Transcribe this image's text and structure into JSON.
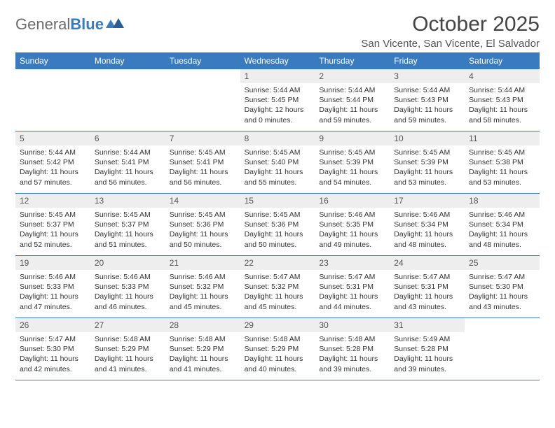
{
  "brand": {
    "first": "General",
    "second": "Blue"
  },
  "title": "October 2025",
  "location": "San Vicente, San Vicente, El Salvador",
  "colors": {
    "header_bg": "#3a7bbf",
    "header_fg": "#ffffff",
    "daynum_bg": "#eeeeee",
    "text": "#333333",
    "brand_gray": "#6b6b6b",
    "brand_blue": "#3a7bbf"
  },
  "dayNames": [
    "Sunday",
    "Monday",
    "Tuesday",
    "Wednesday",
    "Thursday",
    "Friday",
    "Saturday"
  ],
  "weeks": [
    [
      {
        "empty": true
      },
      {
        "empty": true
      },
      {
        "empty": true
      },
      {
        "day": "1",
        "sunrise": "Sunrise: 5:44 AM",
        "sunset": "Sunset: 5:45 PM",
        "daylight": "Daylight: 12 hours and 0 minutes."
      },
      {
        "day": "2",
        "sunrise": "Sunrise: 5:44 AM",
        "sunset": "Sunset: 5:44 PM",
        "daylight": "Daylight: 11 hours and 59 minutes."
      },
      {
        "day": "3",
        "sunrise": "Sunrise: 5:44 AM",
        "sunset": "Sunset: 5:43 PM",
        "daylight": "Daylight: 11 hours and 59 minutes."
      },
      {
        "day": "4",
        "sunrise": "Sunrise: 5:44 AM",
        "sunset": "Sunset: 5:43 PM",
        "daylight": "Daylight: 11 hours and 58 minutes."
      }
    ],
    [
      {
        "day": "5",
        "sunrise": "Sunrise: 5:44 AM",
        "sunset": "Sunset: 5:42 PM",
        "daylight": "Daylight: 11 hours and 57 minutes."
      },
      {
        "day": "6",
        "sunrise": "Sunrise: 5:44 AM",
        "sunset": "Sunset: 5:41 PM",
        "daylight": "Daylight: 11 hours and 56 minutes."
      },
      {
        "day": "7",
        "sunrise": "Sunrise: 5:45 AM",
        "sunset": "Sunset: 5:41 PM",
        "daylight": "Daylight: 11 hours and 56 minutes."
      },
      {
        "day": "8",
        "sunrise": "Sunrise: 5:45 AM",
        "sunset": "Sunset: 5:40 PM",
        "daylight": "Daylight: 11 hours and 55 minutes."
      },
      {
        "day": "9",
        "sunrise": "Sunrise: 5:45 AM",
        "sunset": "Sunset: 5:39 PM",
        "daylight": "Daylight: 11 hours and 54 minutes."
      },
      {
        "day": "10",
        "sunrise": "Sunrise: 5:45 AM",
        "sunset": "Sunset: 5:39 PM",
        "daylight": "Daylight: 11 hours and 53 minutes."
      },
      {
        "day": "11",
        "sunrise": "Sunrise: 5:45 AM",
        "sunset": "Sunset: 5:38 PM",
        "daylight": "Daylight: 11 hours and 53 minutes."
      }
    ],
    [
      {
        "day": "12",
        "sunrise": "Sunrise: 5:45 AM",
        "sunset": "Sunset: 5:37 PM",
        "daylight": "Daylight: 11 hours and 52 minutes."
      },
      {
        "day": "13",
        "sunrise": "Sunrise: 5:45 AM",
        "sunset": "Sunset: 5:37 PM",
        "daylight": "Daylight: 11 hours and 51 minutes."
      },
      {
        "day": "14",
        "sunrise": "Sunrise: 5:45 AM",
        "sunset": "Sunset: 5:36 PM",
        "daylight": "Daylight: 11 hours and 50 minutes."
      },
      {
        "day": "15",
        "sunrise": "Sunrise: 5:45 AM",
        "sunset": "Sunset: 5:36 PM",
        "daylight": "Daylight: 11 hours and 50 minutes."
      },
      {
        "day": "16",
        "sunrise": "Sunrise: 5:46 AM",
        "sunset": "Sunset: 5:35 PM",
        "daylight": "Daylight: 11 hours and 49 minutes."
      },
      {
        "day": "17",
        "sunrise": "Sunrise: 5:46 AM",
        "sunset": "Sunset: 5:34 PM",
        "daylight": "Daylight: 11 hours and 48 minutes."
      },
      {
        "day": "18",
        "sunrise": "Sunrise: 5:46 AM",
        "sunset": "Sunset: 5:34 PM",
        "daylight": "Daylight: 11 hours and 48 minutes."
      }
    ],
    [
      {
        "day": "19",
        "sunrise": "Sunrise: 5:46 AM",
        "sunset": "Sunset: 5:33 PM",
        "daylight": "Daylight: 11 hours and 47 minutes."
      },
      {
        "day": "20",
        "sunrise": "Sunrise: 5:46 AM",
        "sunset": "Sunset: 5:33 PM",
        "daylight": "Daylight: 11 hours and 46 minutes."
      },
      {
        "day": "21",
        "sunrise": "Sunrise: 5:46 AM",
        "sunset": "Sunset: 5:32 PM",
        "daylight": "Daylight: 11 hours and 45 minutes."
      },
      {
        "day": "22",
        "sunrise": "Sunrise: 5:47 AM",
        "sunset": "Sunset: 5:32 PM",
        "daylight": "Daylight: 11 hours and 45 minutes."
      },
      {
        "day": "23",
        "sunrise": "Sunrise: 5:47 AM",
        "sunset": "Sunset: 5:31 PM",
        "daylight": "Daylight: 11 hours and 44 minutes."
      },
      {
        "day": "24",
        "sunrise": "Sunrise: 5:47 AM",
        "sunset": "Sunset: 5:31 PM",
        "daylight": "Daylight: 11 hours and 43 minutes."
      },
      {
        "day": "25",
        "sunrise": "Sunrise: 5:47 AM",
        "sunset": "Sunset: 5:30 PM",
        "daylight": "Daylight: 11 hours and 43 minutes."
      }
    ],
    [
      {
        "day": "26",
        "sunrise": "Sunrise: 5:47 AM",
        "sunset": "Sunset: 5:30 PM",
        "daylight": "Daylight: 11 hours and 42 minutes."
      },
      {
        "day": "27",
        "sunrise": "Sunrise: 5:48 AM",
        "sunset": "Sunset: 5:29 PM",
        "daylight": "Daylight: 11 hours and 41 minutes."
      },
      {
        "day": "28",
        "sunrise": "Sunrise: 5:48 AM",
        "sunset": "Sunset: 5:29 PM",
        "daylight": "Daylight: 11 hours and 41 minutes."
      },
      {
        "day": "29",
        "sunrise": "Sunrise: 5:48 AM",
        "sunset": "Sunset: 5:29 PM",
        "daylight": "Daylight: 11 hours and 40 minutes."
      },
      {
        "day": "30",
        "sunrise": "Sunrise: 5:48 AM",
        "sunset": "Sunset: 5:28 PM",
        "daylight": "Daylight: 11 hours and 39 minutes."
      },
      {
        "day": "31",
        "sunrise": "Sunrise: 5:49 AM",
        "sunset": "Sunset: 5:28 PM",
        "daylight": "Daylight: 11 hours and 39 minutes."
      },
      {
        "empty": true
      }
    ]
  ]
}
